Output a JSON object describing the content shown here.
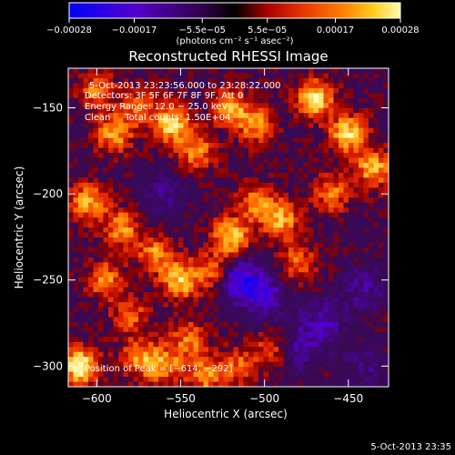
{
  "chart_data": {
    "type": "heatmap",
    "title": "Reconstructed RHESSI Image",
    "xlabel": "Heliocentric X (arcsec)",
    "ylabel": "Heliocentric Y (arcsec)",
    "xlim": [
      -617,
      -426
    ],
    "ylim": [
      -312,
      -127
    ],
    "xticks": [
      -600,
      -550,
      -500,
      -450
    ],
    "xtick_labels": [
      "−600",
      "−550",
      "−500",
      "−450"
    ],
    "yticks": [
      -300,
      -250,
      -200,
      -150
    ],
    "ytick_labels": [
      "−300",
      "−250",
      "−200",
      "−150"
    ],
    "colorbar": {
      "range": [
        -0.00028,
        0.00028
      ],
      "ticks": [
        -0.00028,
        -0.00017,
        -5.5e-05,
        5.5e-05,
        0.00017,
        0.00028
      ],
      "tick_labels": [
        "−0.00028",
        "−0.00017",
        "−5.5e−05",
        "5.5e−05",
        "0.00017",
        "0.00028"
      ],
      "units_label": "(photons cm⁻² s⁻¹ asec⁻²)"
    },
    "peak": {
      "x": -614,
      "y": -292,
      "label": "Position of Peak = [−614, −292]"
    },
    "annotations": [
      "5-Oct-2013 23:23:56.000 to 23:28:22.000",
      "Detectors: 3F 5F 6F 7F 8F 9F, Att 0",
      "Energy Range: 12.0 − 25.0 keV",
      "Clean     Total counts: 1.50E+04"
    ],
    "hot_regions": [
      {
        "x": -600,
        "y": -140,
        "level": 0.55
      },
      {
        "x": -590,
        "y": -165,
        "level": 0.7
      },
      {
        "x": -575,
        "y": -150,
        "level": 0.5
      },
      {
        "x": -555,
        "y": -160,
        "level": 0.85
      },
      {
        "x": -540,
        "y": -175,
        "level": 0.6
      },
      {
        "x": -520,
        "y": -150,
        "level": 0.65
      },
      {
        "x": -505,
        "y": -160,
        "level": 0.6
      },
      {
        "x": -470,
        "y": -145,
        "level": 0.9
      },
      {
        "x": -450,
        "y": -165,
        "level": 0.85
      },
      {
        "x": -435,
        "y": -185,
        "level": 0.75
      },
      {
        "x": -460,
        "y": -200,
        "level": 0.55
      },
      {
        "x": -605,
        "y": -205,
        "level": 0.7
      },
      {
        "x": -585,
        "y": -220,
        "level": 0.65
      },
      {
        "x": -565,
        "y": -235,
        "level": 0.6
      },
      {
        "x": -550,
        "y": -250,
        "level": 0.8
      },
      {
        "x": -530,
        "y": -245,
        "level": 0.55
      },
      {
        "x": -520,
        "y": -225,
        "level": 0.85
      },
      {
        "x": -505,
        "y": -205,
        "level": 0.6
      },
      {
        "x": -490,
        "y": -215,
        "level": 0.7
      },
      {
        "x": -480,
        "y": -240,
        "level": 0.5
      },
      {
        "x": -595,
        "y": -250,
        "level": 0.6
      },
      {
        "x": -580,
        "y": -270,
        "level": 0.5
      },
      {
        "x": -545,
        "y": -285,
        "level": 0.55
      },
      {
        "x": -560,
        "y": -300,
        "level": 0.65
      },
      {
        "x": -535,
        "y": -305,
        "level": 0.6
      },
      {
        "x": -515,
        "y": -300,
        "level": 0.5
      },
      {
        "x": -575,
        "y": -295,
        "level": 0.6
      },
      {
        "x": -610,
        "y": -300,
        "level": 1.0
      },
      {
        "x": -495,
        "y": -290,
        "level": 0.45
      }
    ],
    "cold_regions": [
      {
        "x": -515,
        "y": -250,
        "level": 0.75
      },
      {
        "x": -500,
        "y": -260,
        "level": 0.55
      },
      {
        "x": -465,
        "y": -275,
        "level": 0.5
      },
      {
        "x": -480,
        "y": -290,
        "level": 0.45
      },
      {
        "x": -440,
        "y": -255,
        "level": 0.4
      },
      {
        "x": -560,
        "y": -200,
        "level": 0.35
      },
      {
        "x": -440,
        "y": -300,
        "level": 0.35
      }
    ]
  },
  "footer": {
    "timestamp": "5-Oct-2013 23:35"
  },
  "colors": {
    "background": "#000000",
    "text": "#ffffff"
  }
}
